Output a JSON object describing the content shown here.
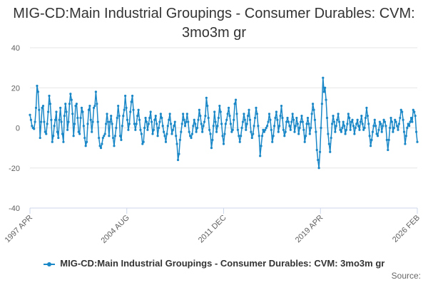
{
  "chart_data": {
    "type": "line",
    "title": "MIG-CD:Main Industrial Groupings - Consumer Durables: CVM: 3mo3m gr",
    "xlabel": "",
    "ylabel": "",
    "ylim": [
      -40,
      40
    ],
    "yticks": [
      40,
      20,
      0,
      -20,
      -40
    ],
    "x_range": [
      "1997 APR",
      "2026 FEB"
    ],
    "x_ticks": [
      "1997 APR",
      "2004 AUG",
      "2011 DEC",
      "2019 APR",
      "2026 FEB"
    ],
    "legend": "top-bottom-center",
    "series": [
      {
        "name": "MIG-CD:Main Industrial Groupings - Consumer Durables: CVM: 3mo3m gr",
        "color": "#1a87c7",
        "values": [
          6.5,
          4,
          1,
          0,
          -0.5,
          3,
          10,
          21,
          18,
          9,
          -5,
          3,
          10,
          11,
          3,
          -2,
          -3,
          2,
          8,
          16,
          12,
          4,
          -7,
          -4,
          1,
          4,
          8,
          -2,
          -5,
          4,
          10,
          3,
          -3,
          -7,
          6,
          12,
          8,
          -1,
          3,
          12,
          17,
          14,
          7,
          -4,
          2,
          11,
          12,
          5,
          -2,
          -3,
          5,
          10,
          8,
          1,
          -5,
          -9,
          -7,
          2,
          9,
          11,
          4,
          -2,
          3,
          10,
          11,
          18,
          12,
          3,
          -5,
          -9,
          -10,
          -8,
          -5,
          -4,
          -3,
          2,
          7,
          3,
          -4,
          3,
          6,
          2,
          -5,
          -9,
          -4,
          0,
          5,
          11,
          6,
          -4,
          -6,
          1,
          6,
          9,
          16,
          10,
          4,
          -1,
          2,
          8,
          13,
          16,
          9,
          2,
          -1,
          2,
          6,
          9,
          4,
          -1,
          -3,
          -8,
          -7,
          0,
          5,
          3,
          -1,
          2,
          5,
          8,
          3,
          -3,
          -1,
          4,
          6,
          2,
          -4,
          0,
          3,
          7,
          5,
          1,
          -2,
          -4,
          -7,
          -3,
          1,
          4,
          7,
          2,
          -3,
          -1,
          1,
          3,
          -4,
          -8,
          -16,
          -13,
          -6,
          -2,
          2,
          7,
          4,
          1,
          3,
          7,
          3,
          -2,
          -4,
          -5,
          -3,
          1,
          4,
          2,
          -2,
          0,
          4,
          9,
          6,
          2,
          -2,
          1,
          3,
          6,
          15,
          11,
          5,
          -1,
          -3,
          -10,
          -6,
          1,
          8,
          3,
          -2,
          1,
          5,
          11,
          8,
          2,
          -4,
          -8,
          -3,
          2,
          4,
          7,
          10,
          6,
          2,
          -2,
          -1,
          4,
          12,
          14,
          7,
          -1,
          -4,
          -7,
          -4,
          0,
          3,
          7,
          4,
          -1,
          2,
          6,
          9,
          4,
          -2,
          -5,
          -3,
          1,
          5,
          10,
          7,
          1,
          -4,
          -14,
          -9,
          -4,
          -1,
          -2,
          -1,
          0,
          1,
          3,
          7,
          4,
          -1,
          -7,
          -4,
          1,
          5,
          8,
          4,
          -2,
          1,
          6,
          11,
          5,
          -1,
          -4,
          -2,
          3,
          5,
          3,
          1,
          -1,
          3,
          7,
          4,
          -2,
          1,
          5,
          2,
          -3,
          0,
          3,
          6,
          3,
          -1,
          -7,
          -4,
          2,
          5,
          2,
          -3,
          0,
          7,
          12,
          9,
          4,
          -2,
          -11,
          -16,
          -20,
          -12,
          0,
          12,
          25,
          18,
          20,
          14,
          5,
          -3,
          -8,
          -12,
          -5,
          2,
          6,
          3,
          -2,
          1,
          4,
          7,
          3,
          -1,
          -2,
          0,
          3,
          1,
          -3,
          -1,
          2,
          7,
          5,
          -1,
          3,
          4,
          1,
          -3,
          0,
          2,
          4,
          1,
          -1,
          3,
          6,
          2,
          -1,
          0,
          5,
          10,
          6,
          2,
          -4,
          -9,
          -6,
          -2,
          1,
          4,
          1,
          -3,
          -4,
          -1,
          3,
          2,
          -2,
          1,
          4,
          3,
          1,
          -6,
          -11,
          -6,
          0,
          5,
          3,
          -2,
          0,
          4,
          3,
          1,
          -1,
          2,
          5,
          9,
          8,
          4,
          -2,
          -8,
          -4,
          0,
          2,
          1,
          3,
          5,
          3,
          9,
          8,
          6,
          -2,
          -7
        ]
      }
    ],
    "source_label": "Source:"
  }
}
